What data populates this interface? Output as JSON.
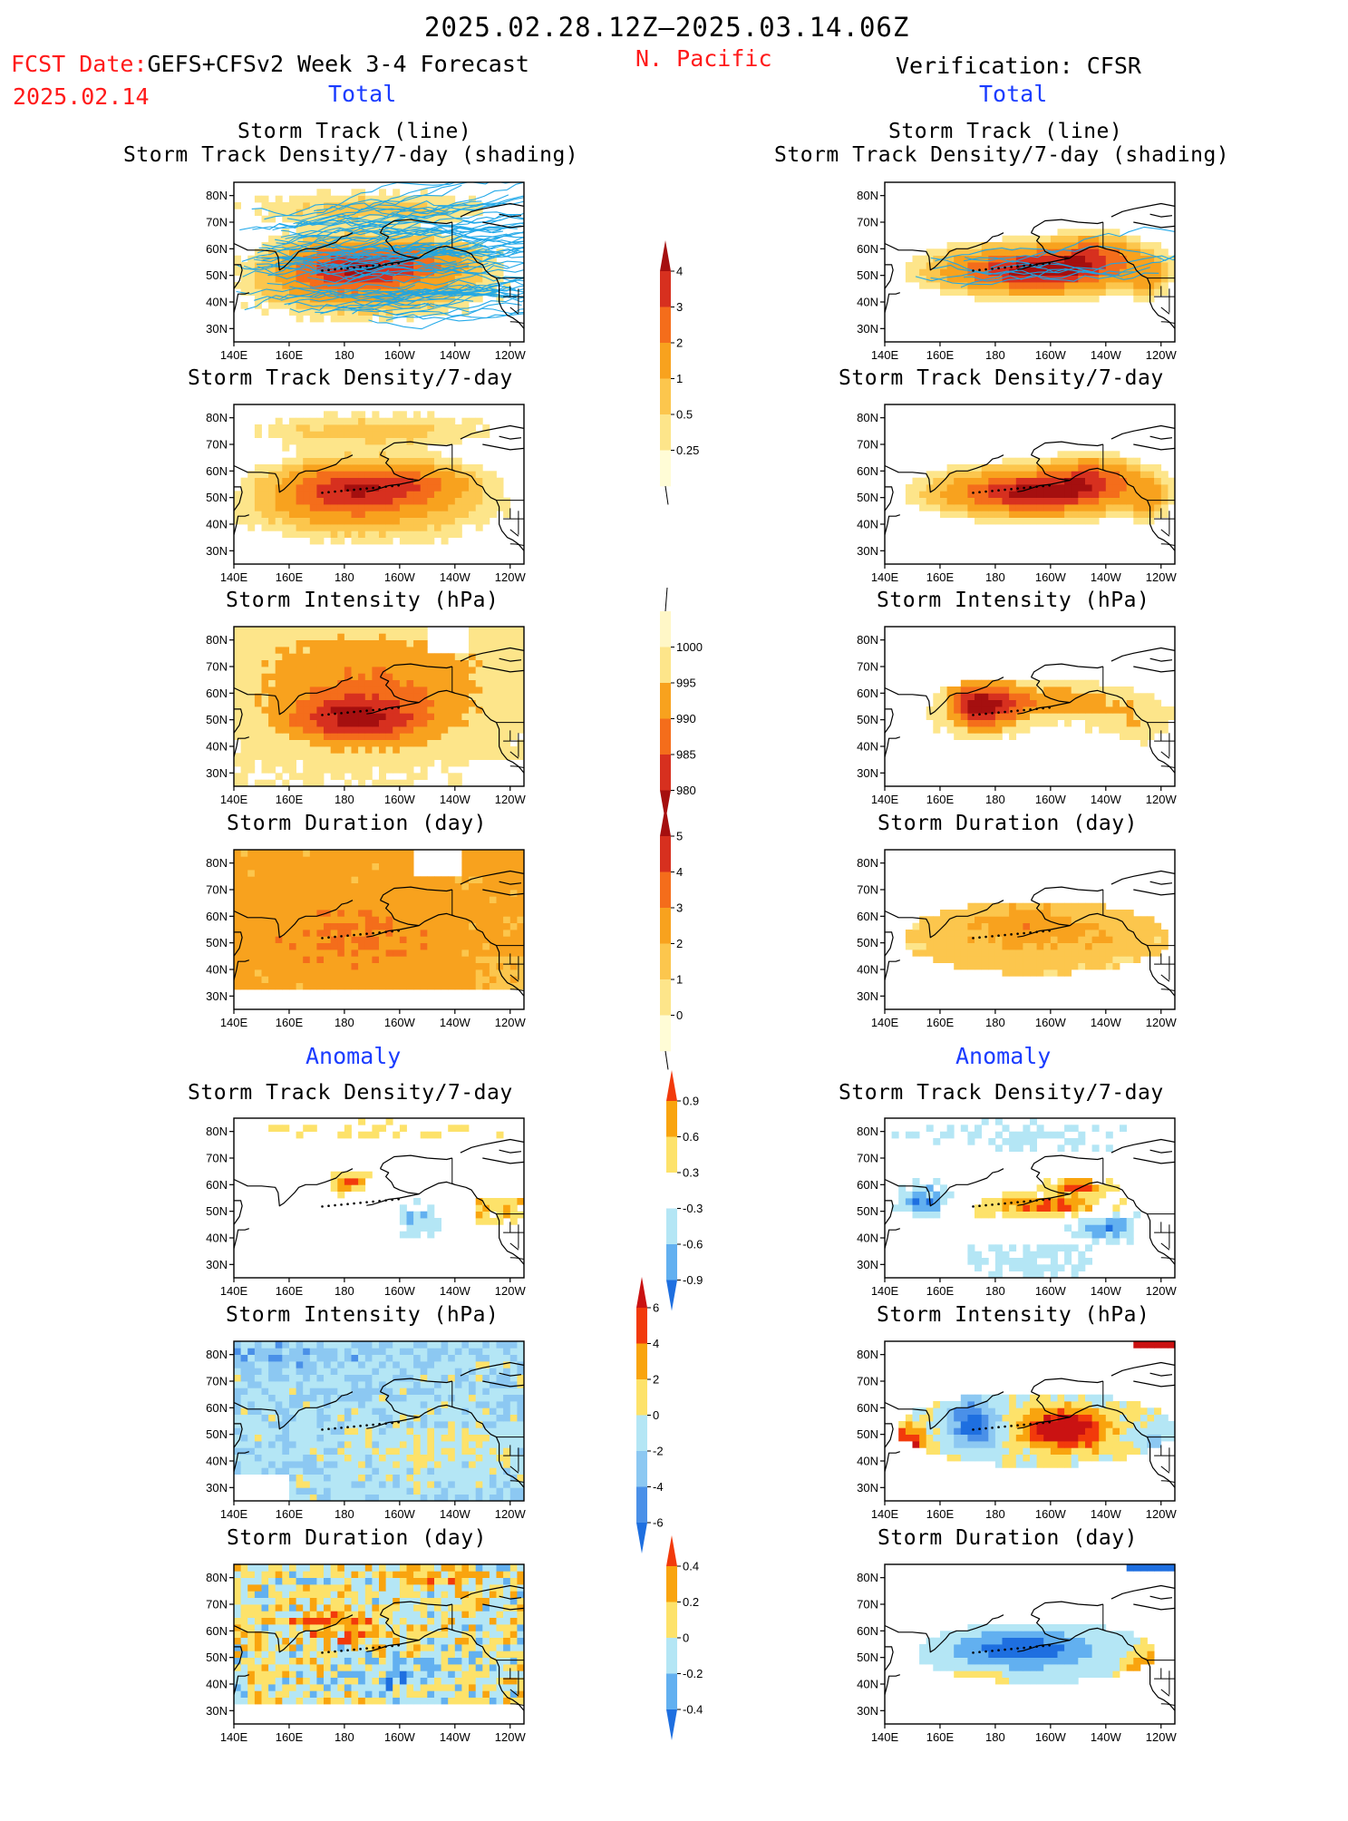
{
  "header": {
    "date_range": "2025.02.28.12Z–2025.03.14.06Z",
    "region": "N. Pacific",
    "fcst_label": "FCST Date:",
    "fcst_model": "GEFS+CFSv2 Week 3-4 Forecast",
    "fcst_date": "2025.02.14",
    "verification": "Verification: CFSR",
    "total_left": "Total",
    "total_right": "Total",
    "anomaly_left": "Anomaly",
    "anomaly_right": "Anomaly"
  },
  "panel_titles": {
    "track_line": "Storm Track (line)",
    "track_shading": "Storm Track Density/7-day (shading)",
    "density": "Storm Track Density/7-day",
    "intensity": "Storm Intensity (hPa)",
    "duration": "Storm Duration (day)"
  },
  "axes": {
    "lat_ticks": [
      "80N",
      "70N",
      "60N",
      "50N",
      "40N",
      "30N"
    ],
    "lon_ticks": [
      "140E",
      "160E",
      "180",
      "160W",
      "140W",
      "120W"
    ]
  },
  "colorbars": {
    "density": {
      "labels": [
        "4",
        "3",
        "2",
        "1",
        "0.5",
        "0.25"
      ],
      "colors": [
        "#a50f0f",
        "#d7301f",
        "#f46d1b",
        "#f8a21e",
        "#fcc64d",
        "#fde58a",
        "#fffcd6"
      ]
    },
    "intensity": {
      "labels": [
        "1000",
        "995",
        "990",
        "985",
        "980"
      ],
      "colors": [
        "#fff7c7",
        "#fde58a",
        "#f8a21e",
        "#f46d1b",
        "#d7301f",
        "#a50f0f"
      ]
    },
    "duration": {
      "labels": [
        "5",
        "4",
        "3",
        "2",
        "1",
        "0"
      ],
      "colors": [
        "#a50f0f",
        "#d7301f",
        "#f46d1b",
        "#f8a21e",
        "#fcc64d",
        "#fde58a",
        "#fffcd6"
      ]
    },
    "anom_density": {
      "labels": [
        "0.9",
        "0.6",
        "0.3",
        "-0.3",
        "-0.6",
        "-0.9"
      ],
      "colors": [
        "#f23a0b",
        "#f9a40e",
        "#fde26a",
        "#ffffff",
        "#b4e6f5",
        "#62b0f0",
        "#1e6fe0"
      ]
    },
    "anom_intensity": {
      "labels": [
        "6",
        "4",
        "2",
        "0",
        "-2",
        "-4",
        "-6"
      ],
      "colors": [
        "#ca1212",
        "#f23a0b",
        "#f9a40e",
        "#fde26a",
        "#b4e6f5",
        "#8cc8f2",
        "#4a90e8",
        "#1e6fe0"
      ]
    },
    "anom_duration": {
      "labels": [
        "0.4",
        "0.2",
        "0",
        "-0.2",
        "-0.4"
      ],
      "colors": [
        "#f23a0b",
        "#f9a40e",
        "#fde26a",
        "#b4e6f5",
        "#62b0f0",
        "#1e6fe0"
      ]
    }
  },
  "colors": {
    "date_text": "#000000",
    "red_text": "#ff1a1a",
    "blue_text": "#1a3cff",
    "track_line": "#1aa6e8"
  }
}
